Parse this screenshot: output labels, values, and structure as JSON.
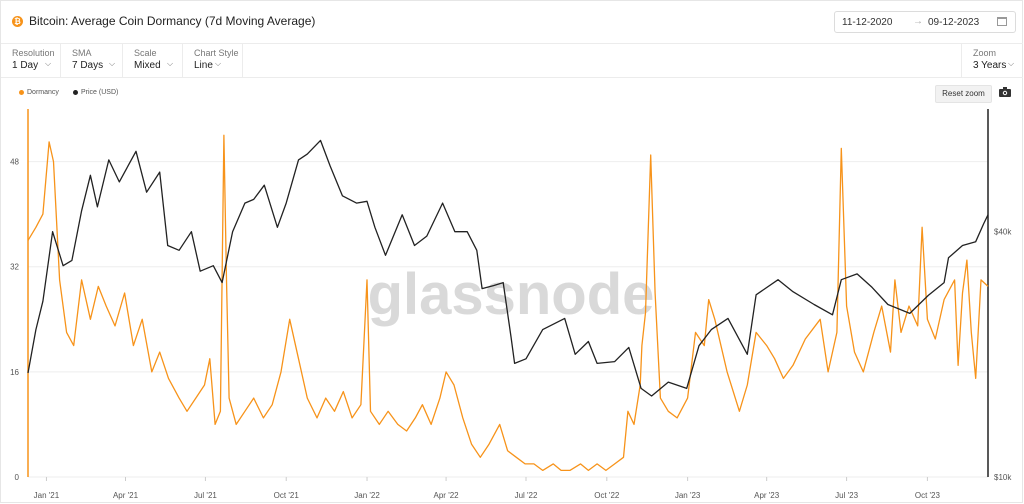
{
  "header": {
    "title": "Bitcoin: Average Coin Dormancy (7d Moving Average)",
    "logo_symbol": "₿",
    "date_from": "11-12-2020",
    "date_to": "09-12-2023",
    "arrow": "→"
  },
  "toolbar": {
    "resolution": {
      "label": "Resolution",
      "value": "1 Day"
    },
    "sma": {
      "label": "SMA",
      "value": "7 Days"
    },
    "scale": {
      "label": "Scale",
      "value": "Mixed"
    },
    "chart_style": {
      "label": "Chart Style",
      "value": "Line"
    },
    "zoom": {
      "label": "Zoom",
      "value": "3 Years"
    },
    "chevron": "⌵"
  },
  "legend": {
    "dormancy": "Dormancy",
    "price": "Price (USD)"
  },
  "reset_zoom": "Reset zoom",
  "watermark": "glassnode",
  "colors": {
    "dormancy": "#f7931a",
    "price": "#222222",
    "grid": "#eeeeee"
  },
  "icons": {
    "logo": "bitcoin-icon",
    "calendar": "calendar-icon",
    "camera": "camera-icon"
  },
  "chart_data": {
    "type": "line",
    "x_ticks": [
      "Jan '21",
      "Apr '21",
      "Jul '21",
      "Oct '21",
      "Jan '22",
      "Apr '22",
      "Jul '22",
      "Oct '22",
      "Jan '23",
      "Apr '23",
      "Jul '23",
      "Oct '23"
    ],
    "left_axis": {
      "ticks": [
        0,
        16,
        32,
        48
      ],
      "range": [
        0,
        56
      ],
      "scale": "linear"
    },
    "right_axis": {
      "ticks": [
        "$10k",
        "$40k"
      ],
      "tick_values": [
        10000,
        40000
      ],
      "range": [
        10000,
        80000
      ],
      "scale": "log"
    },
    "grid": true,
    "legend_position": "top-left",
    "series": [
      {
        "name": "Dormancy",
        "axis": "left",
        "points": [
          [
            "2020-12-11",
            36
          ],
          [
            "2020-12-20",
            38
          ],
          [
            "2020-12-28",
            40
          ],
          [
            "2021-01-04",
            51
          ],
          [
            "2021-01-09",
            48
          ],
          [
            "2021-01-16",
            30
          ],
          [
            "2021-01-24",
            22
          ],
          [
            "2021-02-01",
            20
          ],
          [
            "2021-02-10",
            30
          ],
          [
            "2021-02-20",
            24
          ],
          [
            "2021-03-01",
            29
          ],
          [
            "2021-03-10",
            26
          ],
          [
            "2021-03-20",
            23
          ],
          [
            "2021-03-31",
            28
          ],
          [
            "2021-04-10",
            20
          ],
          [
            "2021-04-20",
            24
          ],
          [
            "2021-05-01",
            16
          ],
          [
            "2021-05-10",
            19
          ],
          [
            "2021-05-20",
            15
          ],
          [
            "2021-06-01",
            12
          ],
          [
            "2021-06-10",
            10
          ],
          [
            "2021-06-20",
            12
          ],
          [
            "2021-06-30",
            14
          ],
          [
            "2021-07-06",
            18
          ],
          [
            "2021-07-12",
            8
          ],
          [
            "2021-07-18",
            10
          ],
          [
            "2021-07-22",
            52
          ],
          [
            "2021-07-25",
            30
          ],
          [
            "2021-07-28",
            12
          ],
          [
            "2021-08-05",
            8
          ],
          [
            "2021-08-15",
            10
          ],
          [
            "2021-08-25",
            12
          ],
          [
            "2021-09-05",
            9
          ],
          [
            "2021-09-15",
            11
          ],
          [
            "2021-09-25",
            16
          ],
          [
            "2021-10-05",
            24
          ],
          [
            "2021-10-15",
            18
          ],
          [
            "2021-10-25",
            12
          ],
          [
            "2021-11-05",
            9
          ],
          [
            "2021-11-15",
            12
          ],
          [
            "2021-11-25",
            10
          ],
          [
            "2021-12-05",
            13
          ],
          [
            "2021-12-15",
            9
          ],
          [
            "2021-12-25",
            11
          ],
          [
            "2022-01-01",
            30
          ],
          [
            "2022-01-05",
            10
          ],
          [
            "2022-01-15",
            8
          ],
          [
            "2022-01-25",
            10
          ],
          [
            "2022-02-05",
            8
          ],
          [
            "2022-02-15",
            7
          ],
          [
            "2022-02-25",
            9
          ],
          [
            "2022-03-05",
            11
          ],
          [
            "2022-03-15",
            8
          ],
          [
            "2022-03-25",
            12
          ],
          [
            "2022-04-01",
            16
          ],
          [
            "2022-04-10",
            14
          ],
          [
            "2022-04-20",
            9
          ],
          [
            "2022-04-30",
            5
          ],
          [
            "2022-05-10",
            3
          ],
          [
            "2022-05-20",
            5
          ],
          [
            "2022-06-01",
            8
          ],
          [
            "2022-06-10",
            4
          ],
          [
            "2022-06-20",
            3
          ],
          [
            "2022-06-30",
            2
          ],
          [
            "2022-07-10",
            2
          ],
          [
            "2022-07-20",
            1
          ],
          [
            "2022-08-01",
            2
          ],
          [
            "2022-08-10",
            1
          ],
          [
            "2022-08-20",
            1
          ],
          [
            "2022-09-01",
            2
          ],
          [
            "2022-09-10",
            1
          ],
          [
            "2022-09-20",
            2
          ],
          [
            "2022-09-30",
            1
          ],
          [
            "2022-10-10",
            2
          ],
          [
            "2022-10-20",
            3
          ],
          [
            "2022-10-25",
            10
          ],
          [
            "2022-11-01",
            8
          ],
          [
            "2022-11-08",
            14
          ],
          [
            "2022-11-10",
            20
          ],
          [
            "2022-11-14",
            25
          ],
          [
            "2022-11-20",
            49
          ],
          [
            "2022-11-25",
            28
          ],
          [
            "2022-12-01",
            12
          ],
          [
            "2022-12-10",
            10
          ],
          [
            "2022-12-20",
            9
          ],
          [
            "2023-01-01",
            12
          ],
          [
            "2023-01-10",
            22
          ],
          [
            "2023-01-20",
            20
          ],
          [
            "2023-01-25",
            27
          ],
          [
            "2023-02-01",
            24
          ],
          [
            "2023-02-15",
            16
          ],
          [
            "2023-03-01",
            10
          ],
          [
            "2023-03-10",
            14
          ],
          [
            "2023-03-20",
            22
          ],
          [
            "2023-04-01",
            20
          ],
          [
            "2023-04-10",
            18
          ],
          [
            "2023-04-20",
            15
          ],
          [
            "2023-05-01",
            17
          ],
          [
            "2023-05-15",
            21
          ],
          [
            "2023-06-01",
            24
          ],
          [
            "2023-06-10",
            16
          ],
          [
            "2023-06-20",
            22
          ],
          [
            "2023-06-25",
            50
          ],
          [
            "2023-07-01",
            26
          ],
          [
            "2023-07-10",
            19
          ],
          [
            "2023-07-20",
            16
          ],
          [
            "2023-08-01",
            22
          ],
          [
            "2023-08-10",
            26
          ],
          [
            "2023-08-20",
            19
          ],
          [
            "2023-08-25",
            30
          ],
          [
            "2023-09-01",
            22
          ],
          [
            "2023-09-10",
            26
          ],
          [
            "2023-09-20",
            23
          ],
          [
            "2023-09-25",
            38
          ],
          [
            "2023-10-01",
            24
          ],
          [
            "2023-10-10",
            21
          ],
          [
            "2023-10-20",
            27
          ],
          [
            "2023-11-01",
            30
          ],
          [
            "2023-11-05",
            17
          ],
          [
            "2023-11-10",
            28
          ],
          [
            "2023-11-15",
            33
          ],
          [
            "2023-11-20",
            22
          ],
          [
            "2023-11-25",
            15
          ],
          [
            "2023-12-01",
            30
          ],
          [
            "2023-12-09",
            29
          ]
        ]
      },
      {
        "name": "Price (USD)",
        "axis": "right",
        "points": [
          [
            "2020-12-11",
            18000
          ],
          [
            "2020-12-20",
            23000
          ],
          [
            "2020-12-28",
            27000
          ],
          [
            "2021-01-08",
            40000
          ],
          [
            "2021-01-20",
            33000
          ],
          [
            "2021-01-30",
            34000
          ],
          [
            "2021-02-10",
            45000
          ],
          [
            "2021-02-20",
            55000
          ],
          [
            "2021-02-28",
            46000
          ],
          [
            "2021-03-13",
            60000
          ],
          [
            "2021-03-25",
            53000
          ],
          [
            "2021-04-13",
            63000
          ],
          [
            "2021-04-25",
            50000
          ],
          [
            "2021-05-10",
            56000
          ],
          [
            "2021-05-19",
            37000
          ],
          [
            "2021-06-01",
            36000
          ],
          [
            "2021-06-15",
            40000
          ],
          [
            "2021-06-25",
            32000
          ],
          [
            "2021-07-10",
            33000
          ],
          [
            "2021-07-20",
            30000
          ],
          [
            "2021-08-01",
            40000
          ],
          [
            "2021-08-15",
            47000
          ],
          [
            "2021-08-25",
            48000
          ],
          [
            "2021-09-06",
            52000
          ],
          [
            "2021-09-21",
            41000
          ],
          [
            "2021-10-01",
            47000
          ],
          [
            "2021-10-15",
            60000
          ],
          [
            "2021-10-25",
            62000
          ],
          [
            "2021-11-09",
            67000
          ],
          [
            "2021-11-20",
            58000
          ],
          [
            "2021-12-04",
            49000
          ],
          [
            "2021-12-20",
            47000
          ],
          [
            "2022-01-01",
            47500
          ],
          [
            "2022-01-10",
            41000
          ],
          [
            "2022-01-22",
            35000
          ],
          [
            "2022-02-10",
            44000
          ],
          [
            "2022-02-24",
            37000
          ],
          [
            "2022-03-10",
            39000
          ],
          [
            "2022-03-28",
            47000
          ],
          [
            "2022-04-11",
            40000
          ],
          [
            "2022-04-25",
            40000
          ],
          [
            "2022-05-06",
            36000
          ],
          [
            "2022-05-12",
            29000
          ],
          [
            "2022-05-25",
            29500
          ],
          [
            "2022-06-05",
            30000
          ],
          [
            "2022-06-14",
            22000
          ],
          [
            "2022-06-18",
            19000
          ],
          [
            "2022-07-01",
            19500
          ],
          [
            "2022-07-20",
            23000
          ],
          [
            "2022-08-14",
            24500
          ],
          [
            "2022-08-26",
            20000
          ],
          [
            "2022-09-10",
            21500
          ],
          [
            "2022-09-20",
            19000
          ],
          [
            "2022-10-10",
            19200
          ],
          [
            "2022-10-26",
            20800
          ],
          [
            "2022-11-09",
            16500
          ],
          [
            "2022-11-21",
            15800
          ],
          [
            "2022-12-10",
            17100
          ],
          [
            "2022-12-31",
            16500
          ],
          [
            "2023-01-14",
            21000
          ],
          [
            "2023-01-28",
            23000
          ],
          [
            "2023-02-16",
            24500
          ],
          [
            "2023-03-10",
            20000
          ],
          [
            "2023-03-20",
            28000
          ],
          [
            "2023-04-14",
            30500
          ],
          [
            "2023-05-01",
            28500
          ],
          [
            "2023-05-25",
            26500
          ],
          [
            "2023-06-15",
            25000
          ],
          [
            "2023-06-25",
            30500
          ],
          [
            "2023-07-13",
            31500
          ],
          [
            "2023-07-30",
            29200
          ],
          [
            "2023-08-17",
            26500
          ],
          [
            "2023-09-11",
            25200
          ],
          [
            "2023-10-02",
            27900
          ],
          [
            "2023-10-20",
            30000
          ],
          [
            "2023-10-25",
            34500
          ],
          [
            "2023-11-10",
            37000
          ],
          [
            "2023-11-25",
            37800
          ],
          [
            "2023-12-04",
            41800
          ],
          [
            "2023-12-09",
            44000
          ]
        ]
      }
    ]
  }
}
